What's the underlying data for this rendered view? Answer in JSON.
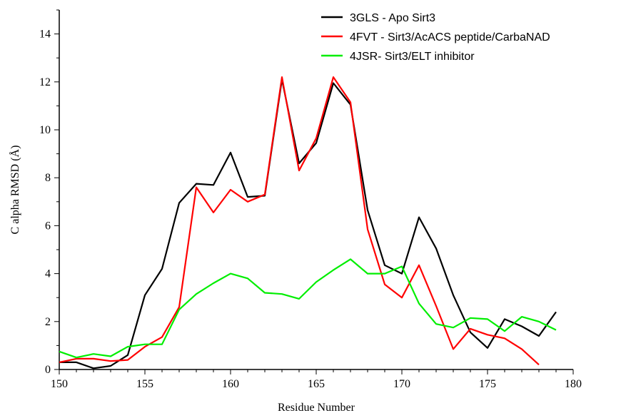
{
  "chart_data": {
    "type": "line",
    "xlabel": "Residue Number",
    "ylabel": "C alpha RMSD (Å)",
    "xlim": [
      150,
      180
    ],
    "ylim": [
      0,
      15
    ],
    "xticks": [
      150,
      155,
      160,
      165,
      170,
      175,
      180
    ],
    "yticks": [
      0,
      2,
      4,
      6,
      8,
      10,
      12,
      14
    ],
    "grid": false,
    "legend_position": "top-right",
    "series": [
      {
        "name": "3GLS - Apo Sirt3",
        "color": "#000000",
        "x": [
          150,
          151,
          152,
          153,
          154,
          155,
          156,
          157,
          158,
          159,
          160,
          161,
          162,
          163,
          164,
          165,
          166,
          167,
          168,
          169,
          170,
          171,
          172,
          173,
          174,
          175,
          176,
          177,
          178,
          179
        ],
        "y": [
          0.3,
          0.3,
          0.05,
          0.15,
          0.6,
          3.1,
          4.2,
          6.95,
          7.75,
          7.7,
          9.05,
          7.2,
          7.25,
          12.1,
          8.6,
          9.45,
          11.95,
          11.05,
          6.65,
          4.35,
          4.0,
          6.35,
          5.05,
          3.1,
          1.55,
          0.9,
          2.1,
          1.8,
          1.4,
          2.4
        ]
      },
      {
        "name": "4FVT - Sirt3/AcACS peptide/CarbaNAD",
        "color": "#ff0000",
        "x": [
          150,
          151,
          152,
          153,
          154,
          155,
          156,
          157,
          158,
          159,
          160,
          161,
          162,
          163,
          164,
          165,
          166,
          167,
          168,
          169,
          170,
          171,
          172,
          173,
          174,
          175,
          176,
          177,
          178
        ],
        "y": [
          0.3,
          0.45,
          0.45,
          0.35,
          0.4,
          0.95,
          1.35,
          2.6,
          7.6,
          6.55,
          7.5,
          7.0,
          7.3,
          12.2,
          8.3,
          9.65,
          12.2,
          11.15,
          5.85,
          3.55,
          3.0,
          4.35,
          2.65,
          0.85,
          1.7,
          1.45,
          1.3,
          0.85,
          0.2
        ]
      },
      {
        "name": "4JSR- Sirt3/ELT inhibitor",
        "color": "#00ee00",
        "x": [
          150,
          151,
          152,
          153,
          154,
          155,
          156,
          157,
          158,
          159,
          160,
          161,
          162,
          163,
          164,
          165,
          166,
          167,
          168,
          169,
          170,
          171,
          172,
          173,
          174,
          175,
          176,
          177,
          178,
          179
        ],
        "y": [
          0.75,
          0.5,
          0.65,
          0.55,
          0.95,
          1.05,
          1.05,
          2.5,
          3.15,
          3.6,
          4.0,
          3.8,
          3.2,
          3.15,
          2.95,
          3.65,
          4.15,
          4.6,
          4.0,
          4.0,
          4.3,
          2.75,
          1.9,
          1.75,
          2.15,
          2.1,
          1.6,
          2.2,
          2.0,
          1.65
        ]
      }
    ]
  }
}
